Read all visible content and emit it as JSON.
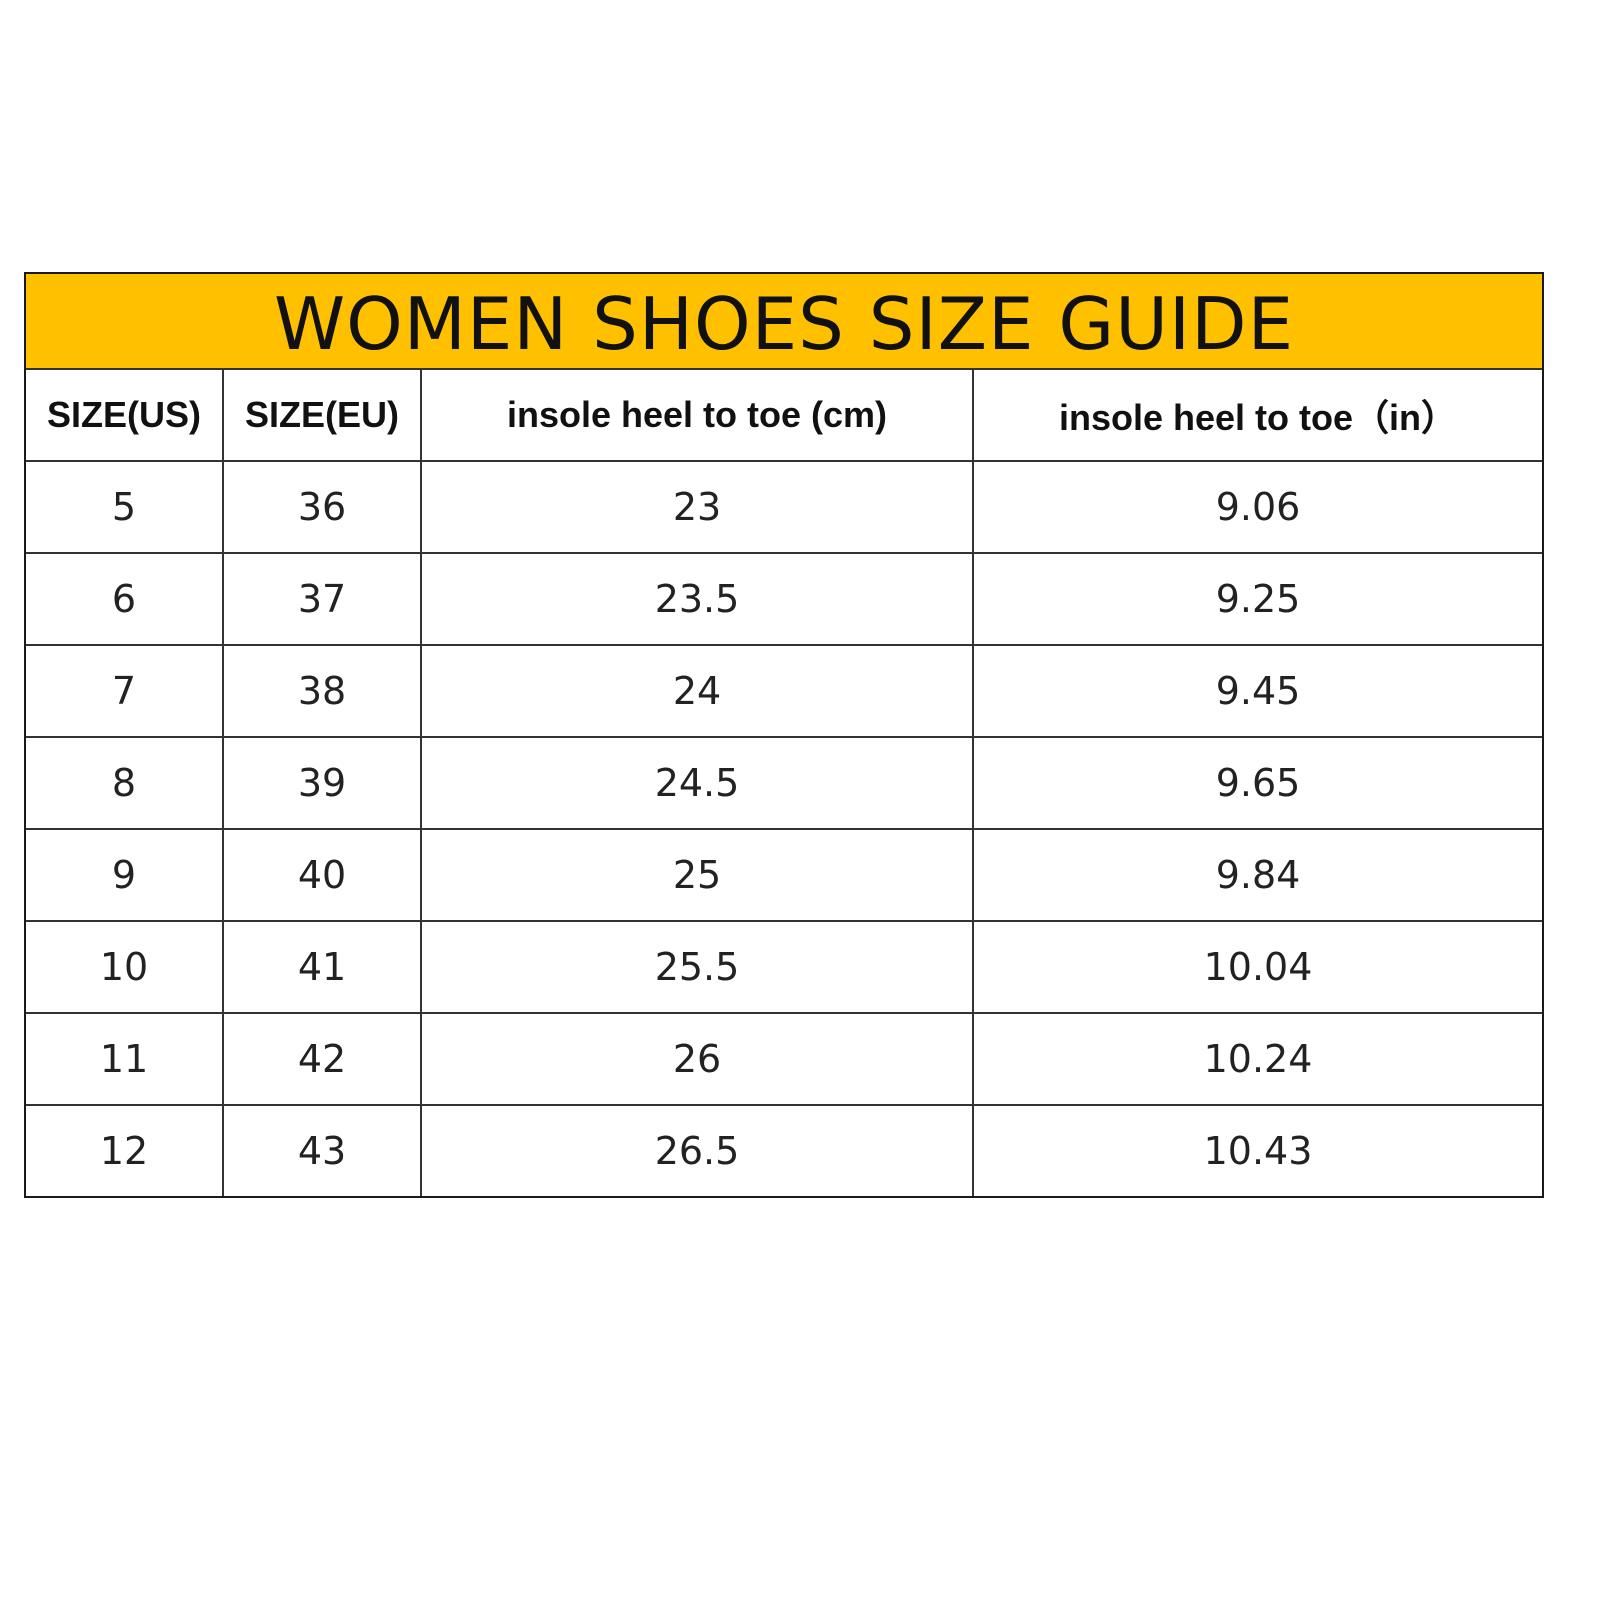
{
  "title": "WOMEN SHOES SIZE GUIDE",
  "accent_color": "#FFC000",
  "headers": [
    "SIZE(US)",
    "SIZE(EU)",
    "insole heel to toe (cm)",
    "insole heel to toe（in）"
  ],
  "rows": [
    [
      "5",
      "36",
      "23",
      "9.06"
    ],
    [
      "6",
      "37",
      "23.5",
      "9.25"
    ],
    [
      "7",
      "38",
      "24",
      "9.45"
    ],
    [
      "8",
      "39",
      "24.5",
      "9.65"
    ],
    [
      "9",
      "40",
      "25",
      "9.84"
    ],
    [
      "10",
      "41",
      "25.5",
      "10.04"
    ],
    [
      "11",
      "42",
      "26",
      "10.24"
    ],
    [
      "12",
      "43",
      "26.5",
      "10.43"
    ]
  ]
}
